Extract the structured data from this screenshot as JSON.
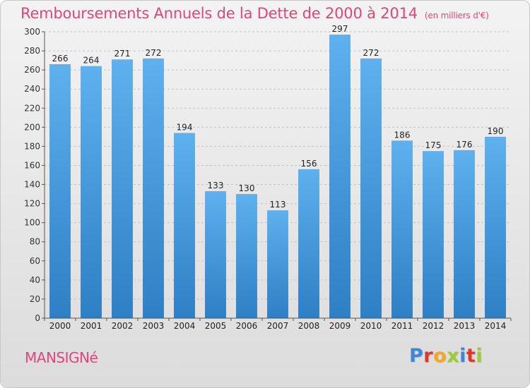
{
  "chart_data": {
    "type": "bar",
    "title": "Remboursements Annuels de la Dette de 2000 à 2014",
    "subtitle": "(en milliers d'€)",
    "categories": [
      "2000",
      "2001",
      "2002",
      "2003",
      "2004",
      "2005",
      "2006",
      "2007",
      "2008",
      "2009",
      "2010",
      "2011",
      "2012",
      "2013",
      "2014"
    ],
    "values": [
      266,
      264,
      271,
      272,
      194,
      133,
      130,
      113,
      156,
      297,
      272,
      186,
      175,
      176,
      190
    ],
    "xlabel": "",
    "ylabel": "",
    "ylim": [
      0,
      300
    ],
    "yticks": [
      0,
      20,
      40,
      60,
      80,
      100,
      120,
      140,
      160,
      180,
      200,
      220,
      240,
      260,
      280,
      300
    ],
    "grid": true,
    "bar_color": "#4fa3e2"
  },
  "footer": {
    "commune": "MANSIGNé",
    "logo": [
      "P",
      "r",
      "o",
      "x",
      "i",
      "t",
      "i"
    ]
  },
  "colors": {
    "title": "#e0457e",
    "logo": [
      "#3f86d6",
      "#e2382a",
      "#f5a623",
      "#9acd32",
      "#3f86d6",
      "#e2382a",
      "#9acd32"
    ]
  }
}
